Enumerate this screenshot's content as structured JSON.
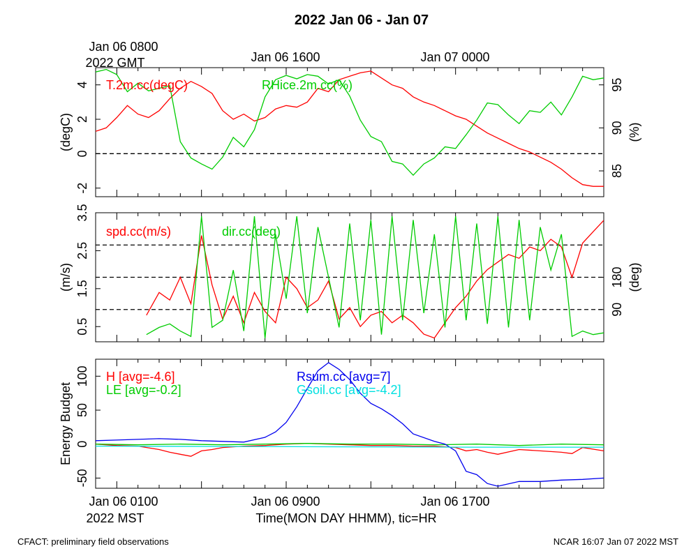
{
  "title": "2022 Jan 06 - Jan 07",
  "top_time_labels": {
    "first_line1": "Jan 06 0800",
    "first_line2": "2022 GMT",
    "second": "Jan 06 1600",
    "third": "Jan 07 0000"
  },
  "bottom_time_labels": {
    "first": "Jan 06 0100",
    "first_line2": "2022 MST",
    "second": "Jan 06 0900",
    "third": "Jan 06 1700"
  },
  "xlabel": "Time(MON DAY HHMM), tic=HR",
  "footer_left": "CFACT: preliminary field observations",
  "footer_right": "NCAR 16:07 Jan 07 2022 MST",
  "colors": {
    "red": "#ff0000",
    "green": "#00cc00",
    "blue": "#0000ee",
    "cyan": "#00e0e0"
  },
  "chart_data": [
    {
      "type": "line",
      "x_unit": "hours since Jan 06 0000 MST",
      "xlim": [
        0,
        24
      ],
      "ylabel": "(degC)",
      "ylim": [
        -2.5,
        5
      ],
      "y_ticks": [
        "-2",
        "0",
        "2",
        "4"
      ],
      "y2label": "(%)",
      "y2lim": [
        82,
        97
      ],
      "y2_ticks": [
        "85",
        "90",
        "95"
      ],
      "grid": "dashed line at 0 degC",
      "series": [
        {
          "name": "T.2m.cc(degC)",
          "color": "red",
          "axis": "left",
          "x": [
            0,
            0.5,
            1,
            1.5,
            2,
            2.5,
            3,
            3.5,
            4,
            4.5,
            5,
            5.5,
            6,
            6.5,
            7,
            7.5,
            8,
            8.5,
            9,
            9.5,
            10,
            10.5,
            11,
            11.5,
            12,
            12.5,
            13,
            13.5,
            14,
            14.5,
            15,
            15.5,
            16,
            16.5,
            17,
            17.5,
            18,
            18.5,
            19,
            19.5,
            20,
            20.5,
            21,
            21.5,
            22,
            22.5,
            23,
            23.5,
            24
          ],
          "y": [
            1.3,
            1.5,
            2.1,
            2.8,
            2.3,
            2.1,
            2.5,
            3.2,
            3.8,
            4.2,
            3.9,
            3.5,
            2.5,
            2.0,
            2.3,
            1.9,
            2.1,
            2.6,
            2.8,
            2.7,
            3.0,
            3.8,
            3.6,
            4.3,
            4.5,
            4.7,
            4.8,
            4.4,
            4.0,
            3.8,
            3.3,
            3.0,
            2.8,
            2.5,
            2.2,
            2.0,
            1.6,
            1.2,
            0.9,
            0.6,
            0.3,
            0.1,
            -0.2,
            -0.5,
            -0.9,
            -1.4,
            -1.8,
            -1.9,
            -1.9
          ]
        },
        {
          "name": "RHice.2m.cc(%)",
          "color": "green",
          "axis": "right",
          "x": [
            0,
            0.5,
            1,
            1.5,
            2,
            2.5,
            3,
            3.5,
            4,
            4.5,
            5,
            5.5,
            6,
            6.5,
            7,
            7.5,
            8,
            8.5,
            9,
            9.5,
            10,
            10.5,
            11,
            11.5,
            12,
            12.5,
            13,
            13.5,
            14,
            14.5,
            15,
            15.5,
            16,
            16.5,
            17,
            17.5,
            18,
            18.5,
            19,
            19.5,
            20,
            20.5,
            21,
            21.5,
            22,
            22.5,
            23,
            23.5,
            24
          ],
          "y": [
            96.5,
            96.8,
            96.2,
            94.2,
            95.2,
            94.3,
            94.6,
            94.9,
            88.4,
            86.5,
            85.8,
            85.2,
            86.6,
            88.9,
            87.8,
            89.8,
            93.6,
            95.6,
            96.1,
            95.7,
            96.2,
            96.0,
            95.1,
            95.6,
            93.7,
            90.9,
            89.0,
            88.4,
            86.1,
            85.8,
            84.5,
            85.8,
            86.5,
            87.8,
            87.6,
            89.2,
            90.9,
            92.9,
            92.7,
            91.5,
            90.5,
            92.0,
            91.8,
            93.0,
            91.5,
            93.6,
            96.0,
            95.6,
            95.8
          ]
        }
      ]
    },
    {
      "type": "line",
      "x_unit": "hours since Jan 06 0000 MST",
      "xlim": [
        0,
        24
      ],
      "ylabel": "(m/s)",
      "ylim": [
        0.1,
        3.5
      ],
      "y_ticks": [
        "0.5",
        "1.5",
        "2.5",
        "3.5"
      ],
      "y2label": "(deg)",
      "y2lim": [
        0,
        360
      ],
      "y2_ticks": [
        "90",
        "180"
      ],
      "grid": "dashed lines at 90, 180, 270 deg",
      "series": [
        {
          "name": "spd.cc(m/s)",
          "color": "red",
          "axis": "left",
          "x": [
            2.4,
            3,
            3.5,
            4,
            4.5,
            5,
            5.5,
            6,
            6.5,
            7,
            7.5,
            8,
            8.5,
            9,
            9.5,
            10,
            10.5,
            11,
            11.5,
            12,
            12.5,
            13,
            13.5,
            14,
            14.5,
            15,
            15.5,
            16,
            16.5,
            17,
            17.5,
            18,
            18.5,
            19,
            19.5,
            20,
            20.5,
            21,
            21.5,
            22,
            22.5,
            23,
            23.5,
            24
          ],
          "y": [
            0.8,
            1.4,
            1.2,
            1.8,
            1.1,
            2.9,
            1.6,
            0.7,
            1.3,
            0.6,
            1.4,
            0.9,
            0.6,
            1.8,
            1.5,
            1.0,
            1.2,
            1.7,
            0.7,
            1.0,
            0.5,
            0.8,
            0.9,
            0.6,
            0.8,
            0.6,
            0.3,
            0.2,
            0.6,
            1.0,
            1.3,
            1.7,
            2.0,
            2.2,
            2.4,
            2.3,
            2.6,
            2.5,
            2.8,
            2.6,
            1.8,
            2.7,
            3.0,
            3.3
          ]
        },
        {
          "name": "dir.cc(deg)",
          "color": "green",
          "axis": "right",
          "x": [
            2.4,
            3,
            3.5,
            4,
            4.5,
            5,
            5.5,
            6,
            6.5,
            7,
            7.5,
            8,
            8.5,
            9,
            9.5,
            10,
            10.5,
            11,
            11.5,
            12,
            12.5,
            13,
            13.5,
            14,
            14.5,
            15,
            15.5,
            16,
            16.5,
            17,
            17.5,
            18,
            18.5,
            19,
            19.5,
            20,
            20.5,
            21,
            21.5,
            22,
            22.5,
            23,
            23.5,
            24
          ],
          "y": [
            20,
            40,
            50,
            30,
            15,
            350,
            40,
            60,
            200,
            30,
            350,
            10,
            300,
            120,
            350,
            80,
            320,
            180,
            40,
            330,
            60,
            340,
            20,
            350,
            60,
            340,
            80,
            300,
            40,
            350,
            60,
            330,
            50,
            350,
            40,
            340,
            60,
            320,
            200,
            300,
            15,
            30,
            20,
            25
          ]
        }
      ]
    },
    {
      "type": "line",
      "x_unit": "hours since Jan 06 0000 MST",
      "xlim": [
        0,
        24
      ],
      "ylabel": "Energy Budget",
      "ylim": [
        -65,
        125
      ],
      "y_ticks": [
        "-50",
        "0",
        "50",
        "100"
      ],
      "grid": "dashed line at 0",
      "series": [
        {
          "name": "H [avg=-4.6]",
          "color": "red",
          "x": [
            0,
            1,
            2,
            3,
            3.5,
            4,
            4.5,
            5,
            5.5,
            6,
            7,
            8,
            9,
            10,
            11,
            12,
            13,
            14,
            15,
            16,
            17,
            17.5,
            18,
            18.5,
            19,
            20,
            21,
            22,
            22.5,
            23,
            24
          ],
          "y": [
            0,
            -2,
            -3,
            -8,
            -12,
            -15,
            -18,
            -10,
            -8,
            -5,
            -3,
            -2,
            0,
            1,
            0,
            -1,
            -2,
            -2,
            -3,
            -3,
            -5,
            -10,
            -8,
            -12,
            -15,
            -8,
            -10,
            -12,
            -14,
            -5,
            -10
          ]
        },
        {
          "name": "LE [avg=-0.2]",
          "color": "green",
          "x": [
            0,
            2,
            4,
            6,
            8,
            10,
            12,
            14,
            16,
            18,
            20,
            22,
            24
          ],
          "y": [
            0,
            -1,
            0,
            -1,
            0,
            1,
            0,
            0,
            -1,
            0,
            -2,
            0,
            -1
          ]
        },
        {
          "name": "Rsum.cc [avg=7]",
          "color": "blue",
          "x": [
            0,
            1,
            2,
            3,
            4,
            5,
            6,
            7,
            8,
            8.5,
            9,
            9.5,
            10,
            10.5,
            11,
            11.5,
            12,
            12.5,
            13,
            13.5,
            14,
            14.5,
            15,
            16,
            16.5,
            17,
            17.5,
            18,
            18.5,
            19,
            20,
            21,
            22,
            23,
            24
          ],
          "y": [
            5,
            6,
            7,
            8,
            7,
            5,
            4,
            3,
            10,
            18,
            32,
            55,
            82,
            108,
            120,
            110,
            95,
            75,
            60,
            52,
            42,
            30,
            15,
            4,
            0,
            -10,
            -40,
            -45,
            -58,
            -62,
            -55,
            -55,
            -53,
            -52,
            -50
          ]
        },
        {
          "name": "Gsoil.cc [avg=-4.2]",
          "color": "cyan",
          "x": [
            0,
            6,
            12,
            18,
            24
          ],
          "y": [
            -3,
            -3.5,
            -4,
            -4.5,
            -4.5
          ]
        }
      ]
    }
  ]
}
